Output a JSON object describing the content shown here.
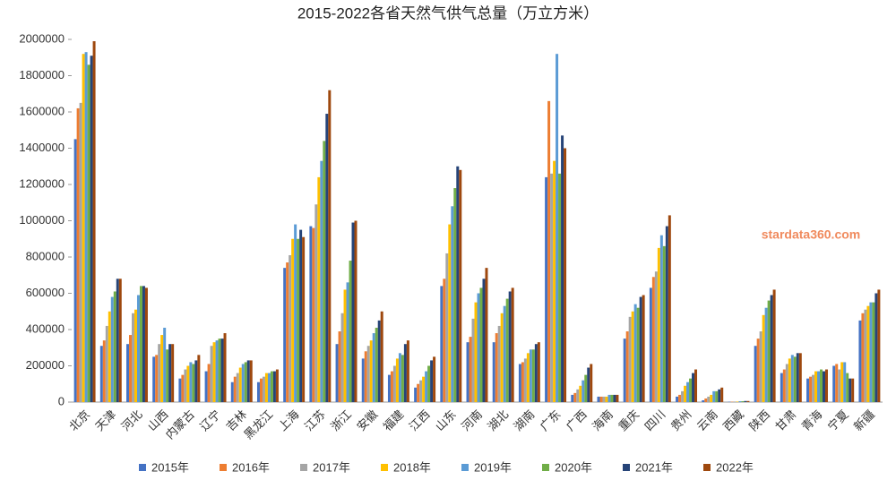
{
  "chart_data": {
    "type": "bar",
    "title": "2015-2022各省天然气供气总量（万立方米）",
    "watermark": "stardata360.com",
    "categories": [
      "北京",
      "天津",
      "河北",
      "山西",
      "内蒙古",
      "辽宁",
      "吉林",
      "黑龙江",
      "上海",
      "江苏",
      "浙江",
      "安徽",
      "福建",
      "江西",
      "山东",
      "河南",
      "湖北",
      "湖南",
      "广东",
      "广西",
      "海南",
      "重庆",
      "四川",
      "贵州",
      "云南",
      "西藏",
      "陕西",
      "甘肃",
      "青海",
      "宁夏",
      "新疆"
    ],
    "series": [
      {
        "name": "2015年",
        "color": "#4472c4",
        "values": [
          1450000,
          310000,
          320000,
          250000,
          130000,
          170000,
          110000,
          110000,
          740000,
          970000,
          320000,
          240000,
          150000,
          80000,
          640000,
          330000,
          330000,
          210000,
          1240000,
          40000,
          30000,
          350000,
          630000,
          30000,
          10000,
          2000,
          310000,
          160000,
          130000,
          200000,
          450000
        ]
      },
      {
        "name": "2016年",
        "color": "#ed7d31",
        "values": [
          1620000,
          340000,
          370000,
          260000,
          150000,
          210000,
          140000,
          130000,
          770000,
          960000,
          390000,
          280000,
          170000,
          100000,
          680000,
          360000,
          380000,
          220000,
          1660000,
          50000,
          30000,
          390000,
          690000,
          40000,
          20000,
          2000,
          350000,
          180000,
          140000,
          210000,
          490000
        ]
      },
      {
        "name": "2017年",
        "color": "#a5a5a5",
        "values": [
          1650000,
          420000,
          490000,
          320000,
          180000,
          310000,
          160000,
          140000,
          810000,
          1090000,
          490000,
          310000,
          200000,
          120000,
          820000,
          460000,
          420000,
          240000,
          1260000,
          70000,
          30000,
          470000,
          720000,
          60000,
          30000,
          3000,
          390000,
          210000,
          150000,
          180000,
          510000
        ]
      },
      {
        "name": "2018年",
        "color": "#ffc000",
        "values": [
          1920000,
          500000,
          510000,
          370000,
          200000,
          330000,
          190000,
          160000,
          900000,
          1240000,
          620000,
          340000,
          240000,
          140000,
          980000,
          550000,
          490000,
          270000,
          1330000,
          90000,
          30000,
          500000,
          850000,
          90000,
          40000,
          3000,
          480000,
          240000,
          170000,
          220000,
          530000
        ]
      },
      {
        "name": "2019年",
        "color": "#5b9bd5",
        "values": [
          1930000,
          580000,
          590000,
          410000,
          220000,
          340000,
          210000,
          160000,
          980000,
          1330000,
          660000,
          380000,
          270000,
          170000,
          1080000,
          600000,
          530000,
          290000,
          1920000,
          120000,
          40000,
          540000,
          920000,
          110000,
          60000,
          5000,
          520000,
          260000,
          170000,
          220000,
          550000
        ]
      },
      {
        "name": "2020年",
        "color": "#70ad47",
        "values": [
          1860000,
          610000,
          640000,
          290000,
          210000,
          350000,
          220000,
          170000,
          900000,
          1440000,
          780000,
          410000,
          260000,
          200000,
          1180000,
          630000,
          570000,
          290000,
          1260000,
          150000,
          40000,
          520000,
          860000,
          130000,
          60000,
          5000,
          560000,
          250000,
          180000,
          160000,
          550000
        ]
      },
      {
        "name": "2021年",
        "color": "#264478",
        "values": [
          1910000,
          680000,
          640000,
          320000,
          230000,
          350000,
          230000,
          170000,
          950000,
          1590000,
          990000,
          450000,
          320000,
          230000,
          1300000,
          680000,
          610000,
          320000,
          1470000,
          190000,
          40000,
          580000,
          970000,
          160000,
          70000,
          6000,
          590000,
          270000,
          170000,
          130000,
          600000
        ]
      },
      {
        "name": "2022年",
        "color": "#9e480e",
        "values": [
          1990000,
          680000,
          630000,
          320000,
          260000,
          380000,
          230000,
          180000,
          910000,
          1720000,
          1000000,
          500000,
          340000,
          250000,
          1280000,
          740000,
          630000,
          330000,
          1400000,
          210000,
          40000,
          590000,
          1030000,
          180000,
          80000,
          6000,
          620000,
          270000,
          180000,
          130000,
          620000
        ]
      }
    ],
    "ylim": [
      0,
      2000000
    ],
    "yticks": [
      0,
      200000,
      400000,
      600000,
      800000,
      1000000,
      1200000,
      1400000,
      1600000,
      1800000,
      2000000
    ],
    "grid": false
  }
}
